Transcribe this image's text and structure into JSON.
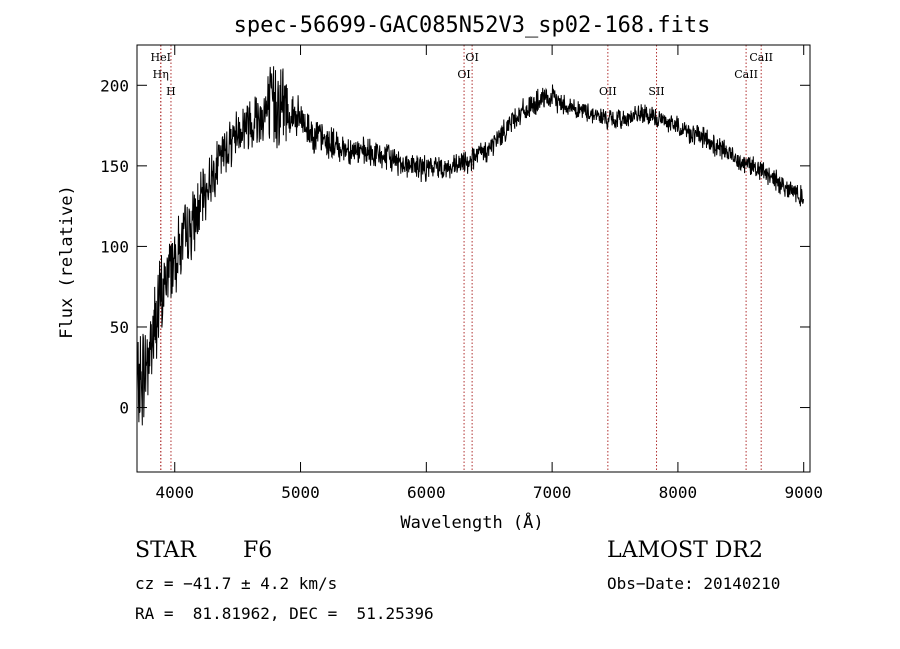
{
  "chart_data": {
    "type": "line",
    "title": "spec-56699-GAC085N52V3_sp02-168.fits",
    "xlabel": "Wavelength (Å)",
    "ylabel": "Flux (relative)",
    "xlim": [
      3700,
      9050
    ],
    "ylim": [
      -40,
      225
    ],
    "xticks": [
      4000,
      5000,
      6000,
      7000,
      8000,
      9000
    ],
    "yticks": [
      0,
      50,
      100,
      150,
      200
    ],
    "series": [
      {
        "x": [
          3700,
          3750,
          3800,
          3850,
          3900,
          3950,
          4000,
          4050,
          4100,
          4150,
          4200,
          4300,
          4400,
          4500,
          4600,
          4700,
          4750,
          4800,
          4850,
          4900,
          4950,
          5000,
          5100,
          5200,
          5300,
          5400,
          5500,
          5600,
          5700,
          5800,
          5900,
          6000,
          6100,
          6200,
          6300,
          6400,
          6500,
          6550,
          6600,
          6700,
          6800,
          6900,
          7000,
          7100,
          7200,
          7300,
          7400,
          7500,
          7600,
          7700,
          7800,
          7900,
          8000,
          8100,
          8200,
          8300,
          8400,
          8500,
          8600,
          8700,
          8800,
          8900,
          9000
        ],
        "y": [
          10,
          20,
          35,
          55,
          70,
          85,
          95,
          100,
          108,
          115,
          125,
          145,
          160,
          172,
          178,
          182,
          185,
          190,
          188,
          185,
          180,
          178,
          170,
          165,
          162,
          160,
          158,
          157,
          155,
          152,
          150,
          148,
          150,
          148,
          152,
          156,
          160,
          165,
          170,
          180,
          185,
          190,
          192,
          188,
          185,
          183,
          180,
          178,
          180,
          182,
          180,
          178,
          175,
          170,
          168,
          162,
          158,
          153,
          150,
          145,
          140,
          135,
          130
        ],
        "noise": [
          25,
          25,
          25,
          25,
          22,
          20,
          18,
          18,
          16,
          16,
          14,
          12,
          12,
          12,
          14,
          16,
          20,
          24,
          22,
          16,
          12,
          10,
          9,
          8,
          8,
          7,
          7,
          7,
          7,
          7,
          6,
          6,
          6,
          6,
          6,
          6,
          6,
          6,
          6,
          6,
          6,
          6,
          6,
          5,
          5,
          5,
          5,
          5,
          5,
          5,
          5,
          5,
          5,
          5,
          5,
          5,
          5,
          5,
          5,
          5,
          5,
          5,
          5
        ]
      }
    ],
    "lines": [
      {
        "label": "Hη",
        "x": 3889,
        "label_row": 1
      },
      {
        "label": "HeI",
        "x": 3889,
        "label_row": 0
      },
      {
        "label": "H",
        "x": 3970,
        "label_row": 2
      },
      {
        "label": "OI",
        "x": 6300,
        "label_row": 1
      },
      {
        "label": "OI",
        "x": 6364,
        "label_row": 0
      },
      {
        "label": "OII",
        "x": 7443,
        "label_row": 2
      },
      {
        "label": "SII",
        "x": 7830,
        "label_row": 2
      },
      {
        "label": "CaII",
        "x": 8542,
        "label_row": 1
      },
      {
        "label": "CaII",
        "x": 8662,
        "label_row": 0
      }
    ],
    "line_color": "#b03030"
  },
  "info": {
    "object_class": "STAR",
    "subclass": "F6",
    "survey": "LAMOST DR2",
    "cz": "cz = −41.7 ± 4.2 km/s",
    "obs_date": "Obs−Date: 20140210",
    "coords": "RA =  81.81962, DEC =  51.25396"
  }
}
